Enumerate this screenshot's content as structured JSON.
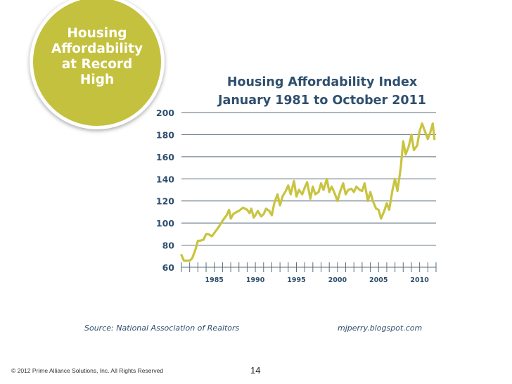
{
  "badge": {
    "lines": [
      "Housing",
      "Affordability",
      "at Record",
      "High"
    ],
    "color": "#c4c13f"
  },
  "footer": {
    "source": "Source: National Association of Realtors",
    "credit": "mjperry.blogspot.com",
    "copyright": "© 2012 Prime Alliance Solutions, Inc. All Rights Reserved",
    "page_number": "14"
  },
  "chart_data": {
    "type": "line",
    "title_lines": [
      "Housing Affordability Index",
      "January 1981 to October 2011"
    ],
    "xlabel": "",
    "ylabel": "",
    "ylim": [
      60,
      200
    ],
    "yticks": [
      60,
      80,
      100,
      120,
      140,
      160,
      180,
      200
    ],
    "xlim": [
      1981,
      2012
    ],
    "xticks": [
      1985,
      1990,
      1995,
      2000,
      2005,
      2010
    ],
    "grid": true,
    "line_color": "#c9c440",
    "grid_color": "#5a6e7d",
    "series": [
      {
        "x": [
          1981.0,
          1981.3,
          1981.7,
          1982.0,
          1982.3,
          1982.7,
          1983.0,
          1983.3,
          1983.7,
          1984.0,
          1984.3,
          1984.7,
          1985.0,
          1985.5,
          1986.0,
          1986.5,
          1986.8,
          1987.0,
          1987.3,
          1987.7,
          1988.0,
          1988.5,
          1989.0,
          1989.3,
          1989.5,
          1989.8,
          1990.0,
          1990.3,
          1990.7,
          1991.0,
          1991.3,
          1991.7,
          1992.0,
          1992.3,
          1992.7,
          1993.0,
          1993.3,
          1993.7,
          1994.0,
          1994.3,
          1994.7,
          1995.0,
          1995.3,
          1995.7,
          1996.0,
          1996.3,
          1996.7,
          1997.0,
          1997.3,
          1997.7,
          1998.0,
          1998.3,
          1998.7,
          1999.0,
          1999.3,
          1999.7,
          2000.0,
          2000.3,
          2000.7,
          2001.0,
          2001.3,
          2001.7,
          2002.0,
          2002.3,
          2002.7,
          2003.0,
          2003.3,
          2003.7,
          2004.0,
          2004.3,
          2004.7,
          2005.0,
          2005.3,
          2005.7,
          2006.0,
          2006.3,
          2006.7,
          2007.0,
          2007.3,
          2007.7,
          2008.0,
          2008.3,
          2008.7,
          2009.0,
          2009.3,
          2009.7,
          2010.0,
          2010.3,
          2010.7,
          2011.0,
          2011.3,
          2011.6,
          2011.8
        ],
        "y": [
          71,
          66,
          66,
          66,
          68,
          76,
          84,
          84,
          85,
          90,
          90,
          88,
          91,
          96,
          102,
          107,
          112,
          104,
          108,
          110,
          111,
          114,
          112,
          109,
          113,
          105,
          107,
          111,
          106,
          108,
          113,
          111,
          107,
          118,
          126,
          116,
          124,
          129,
          134,
          126,
          138,
          124,
          130,
          126,
          132,
          137,
          122,
          133,
          126,
          128,
          136,
          130,
          140,
          128,
          133,
          126,
          120,
          128,
          136,
          126,
          130,
          131,
          128,
          133,
          130,
          129,
          136,
          120,
          128,
          120,
          113,
          112,
          104,
          111,
          118,
          112,
          130,
          140,
          129,
          150,
          174,
          162,
          170,
          180,
          166,
          170,
          183,
          190,
          182,
          176,
          182,
          190,
          176
        ]
      }
    ]
  }
}
